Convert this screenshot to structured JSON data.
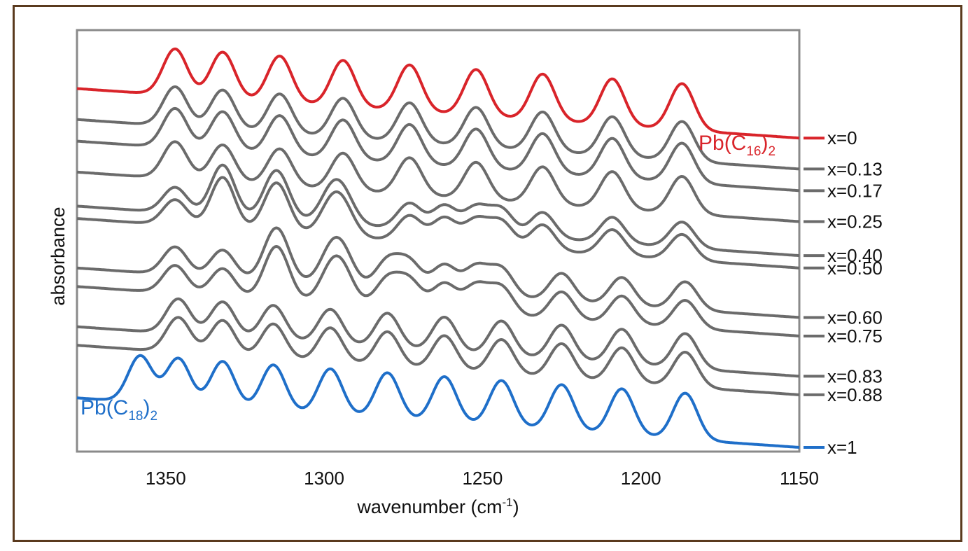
{
  "chart_data": {
    "type": "line",
    "xlabel": {
      "main": "wavenumber (cm",
      "sup": "-1",
      "tail": ")"
    },
    "ylabel": "absorbance",
    "xlim": [
      1378,
      1150
    ],
    "x_reversed": true,
    "x_ticks": [
      "1350",
      "1300",
      "1250",
      "1200",
      "1150"
    ],
    "x_tick_values": [
      1350,
      1300,
      1250,
      1200,
      1150
    ],
    "colors": {
      "top": "#d9242a",
      "bottom": "#1f6fc9",
      "middle": "#6b6b6b",
      "frame": "#5a3a1e",
      "axes": "#8a8a8a"
    },
    "annotations": [
      {
        "name": "top-compound",
        "pre": "Pb(C",
        "sub": "16",
        "post": ")",
        "sub2": "2",
        "color": "#d9242a"
      },
      {
        "name": "bottom-compound",
        "pre": "Pb(C",
        "sub": "18",
        "post": ")",
        "sub2": "2",
        "color": "#1f6fc9"
      }
    ],
    "series": [
      {
        "name": "x=0",
        "color": "#d9242a",
        "offset": 10.0,
        "amp": 1.0,
        "peaks_b": [
          1347,
          1332,
          1314,
          1294,
          1273,
          1252,
          1231,
          1209,
          1187
        ],
        "peaks_a": []
      },
      {
        "name": "x=0.13",
        "color": "#6b6b6b",
        "offset": 9.0,
        "amp": 0.85,
        "peaks_b": [
          1347,
          1332,
          1314,
          1294,
          1273,
          1252,
          1231,
          1209,
          1187
        ],
        "peaks_a": []
      },
      {
        "name": "x=0.17",
        "color": "#6b6b6b",
        "offset": 8.3,
        "amp": 0.85,
        "peaks_b": [
          1347,
          1332,
          1314,
          1294,
          1273,
          1252,
          1231,
          1209,
          1187
        ],
        "peaks_a": []
      },
      {
        "name": "x=0.25",
        "color": "#6b6b6b",
        "offset": 7.3,
        "amp": 0.8,
        "peaks_b": [
          1347,
          1332,
          1314,
          1294,
          1273,
          1252,
          1231,
          1209,
          1187
        ],
        "peaks_a": []
      },
      {
        "name": "x=0.40",
        "color": "#6b6b6b",
        "offset": 6.2,
        "amp": 0.55,
        "peaks_b": [
          1347,
          1332,
          1314,
          1294,
          1273,
          1252,
          1231,
          1209,
          1187
        ],
        "peaks_a": [
          1332,
          1316,
          1298,
          1262,
          1244
        ]
      },
      {
        "name": "x=0.50",
        "color": "#6b6b6b",
        "offset": 5.8,
        "amp": 0.55,
        "peaks_b": [
          1347,
          1332,
          1314,
          1294,
          1273,
          1252,
          1231,
          1209,
          1187
        ],
        "peaks_a": [
          1332,
          1316,
          1298,
          1262,
          1244
        ]
      },
      {
        "name": "x=0.60",
        "color": "#6b6b6b",
        "offset": 4.2,
        "amp": 0.6,
        "peaks_b": [
          1347,
          1314,
          1294,
          1273,
          1252
        ],
        "peaks_a": [
          1332,
          1316,
          1298,
          1280,
          1262,
          1244,
          1225,
          1206,
          1186
        ]
      },
      {
        "name": "x=0.75",
        "color": "#6b6b6b",
        "offset": 3.6,
        "amp": 0.6,
        "peaks_b": [
          1347,
          1314,
          1294,
          1273,
          1252
        ],
        "peaks_a": [
          1332,
          1316,
          1298,
          1280,
          1262,
          1244,
          1225,
          1206,
          1186
        ]
      },
      {
        "name": "x=0.83",
        "color": "#6b6b6b",
        "offset": 2.3,
        "amp": 0.75,
        "peaks_b": [],
        "peaks_a": [
          1346,
          1332,
          1316,
          1298,
          1280,
          1262,
          1244,
          1225,
          1206,
          1186
        ]
      },
      {
        "name": "x=0.88",
        "color": "#6b6b6b",
        "offset": 1.7,
        "amp": 0.75,
        "peaks_b": [],
        "peaks_a": [
          1346,
          1332,
          1316,
          1298,
          1280,
          1262,
          1244,
          1225,
          1206,
          1186
        ]
      },
      {
        "name": "x=1",
        "color": "#1f6fc9",
        "offset": 0.0,
        "amp": 1.0,
        "peaks_b": [],
        "peaks_a": [
          1358,
          1346,
          1332,
          1316,
          1298,
          1280,
          1262,
          1244,
          1225,
          1206,
          1186
        ]
      }
    ]
  }
}
